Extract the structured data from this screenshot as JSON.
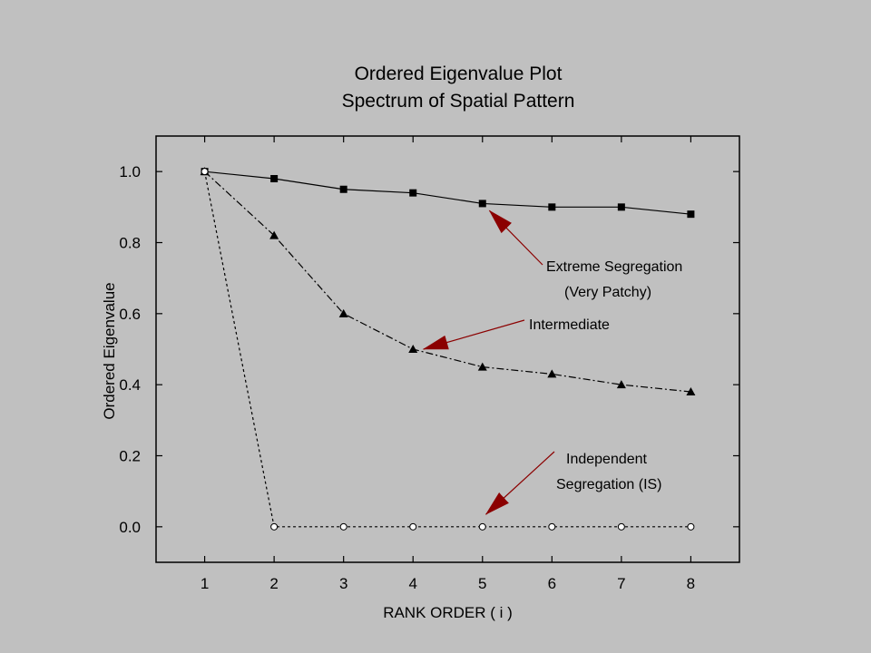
{
  "chart_data": {
    "type": "line",
    "title": "Ordered Eigenvalue Plot",
    "subtitle": "Spectrum of Spatial Pattern",
    "xlabel": "RANK ORDER ( i )",
    "ylabel": "Ordered Eigenvalue",
    "xlim": [
      0.3,
      8.7
    ],
    "ylim": [
      -0.1,
      1.1
    ],
    "x_ticks": [
      1,
      2,
      3,
      4,
      5,
      6,
      7,
      8
    ],
    "y_ticks": [
      0.0,
      0.2,
      0.4,
      0.6,
      0.8,
      1.0
    ],
    "y_tick_labels": [
      "0.0",
      "0.2",
      "0.4",
      "0.6",
      "0.8",
      "1.0"
    ],
    "grid": false,
    "x": [
      1,
      2,
      3,
      4,
      5,
      6,
      7,
      8
    ],
    "series": [
      {
        "values": [
          1.0,
          0.98,
          0.95,
          0.94,
          0.91,
          0.9,
          0.9,
          0.88
        ],
        "marker": "square",
        "line": "solid",
        "color": "#000000"
      },
      {
        "values": [
          1.0,
          0.82,
          0.6,
          0.5,
          0.45,
          0.43,
          0.4,
          0.38
        ],
        "marker": "triangle",
        "line": "dash-dot",
        "color": "#000000"
      },
      {
        "values": [
          1.0,
          0.0,
          0.0,
          0.0,
          0.0,
          0.0,
          0.0,
          0.0
        ],
        "marker": "open-circle",
        "line": "dotted",
        "color": "#000000"
      }
    ],
    "annotations": [
      {
        "lines": [
          "Extreme Segregation",
          "(Very Patchy)"
        ],
        "target_series": 0,
        "points_to": [
          5.1,
          0.89
        ],
        "arrow_color": "#8b0000"
      },
      {
        "lines": [
          "Intermediate"
        ],
        "target_series": 1,
        "points_to": [
          4.15,
          0.5
        ],
        "arrow_color": "#8b0000"
      },
      {
        "lines": [
          "Independent",
          "Segregation (IS)"
        ],
        "target_series": 2,
        "points_to": [
          5.05,
          0.035
        ],
        "arrow_color": "#8b0000"
      }
    ]
  }
}
